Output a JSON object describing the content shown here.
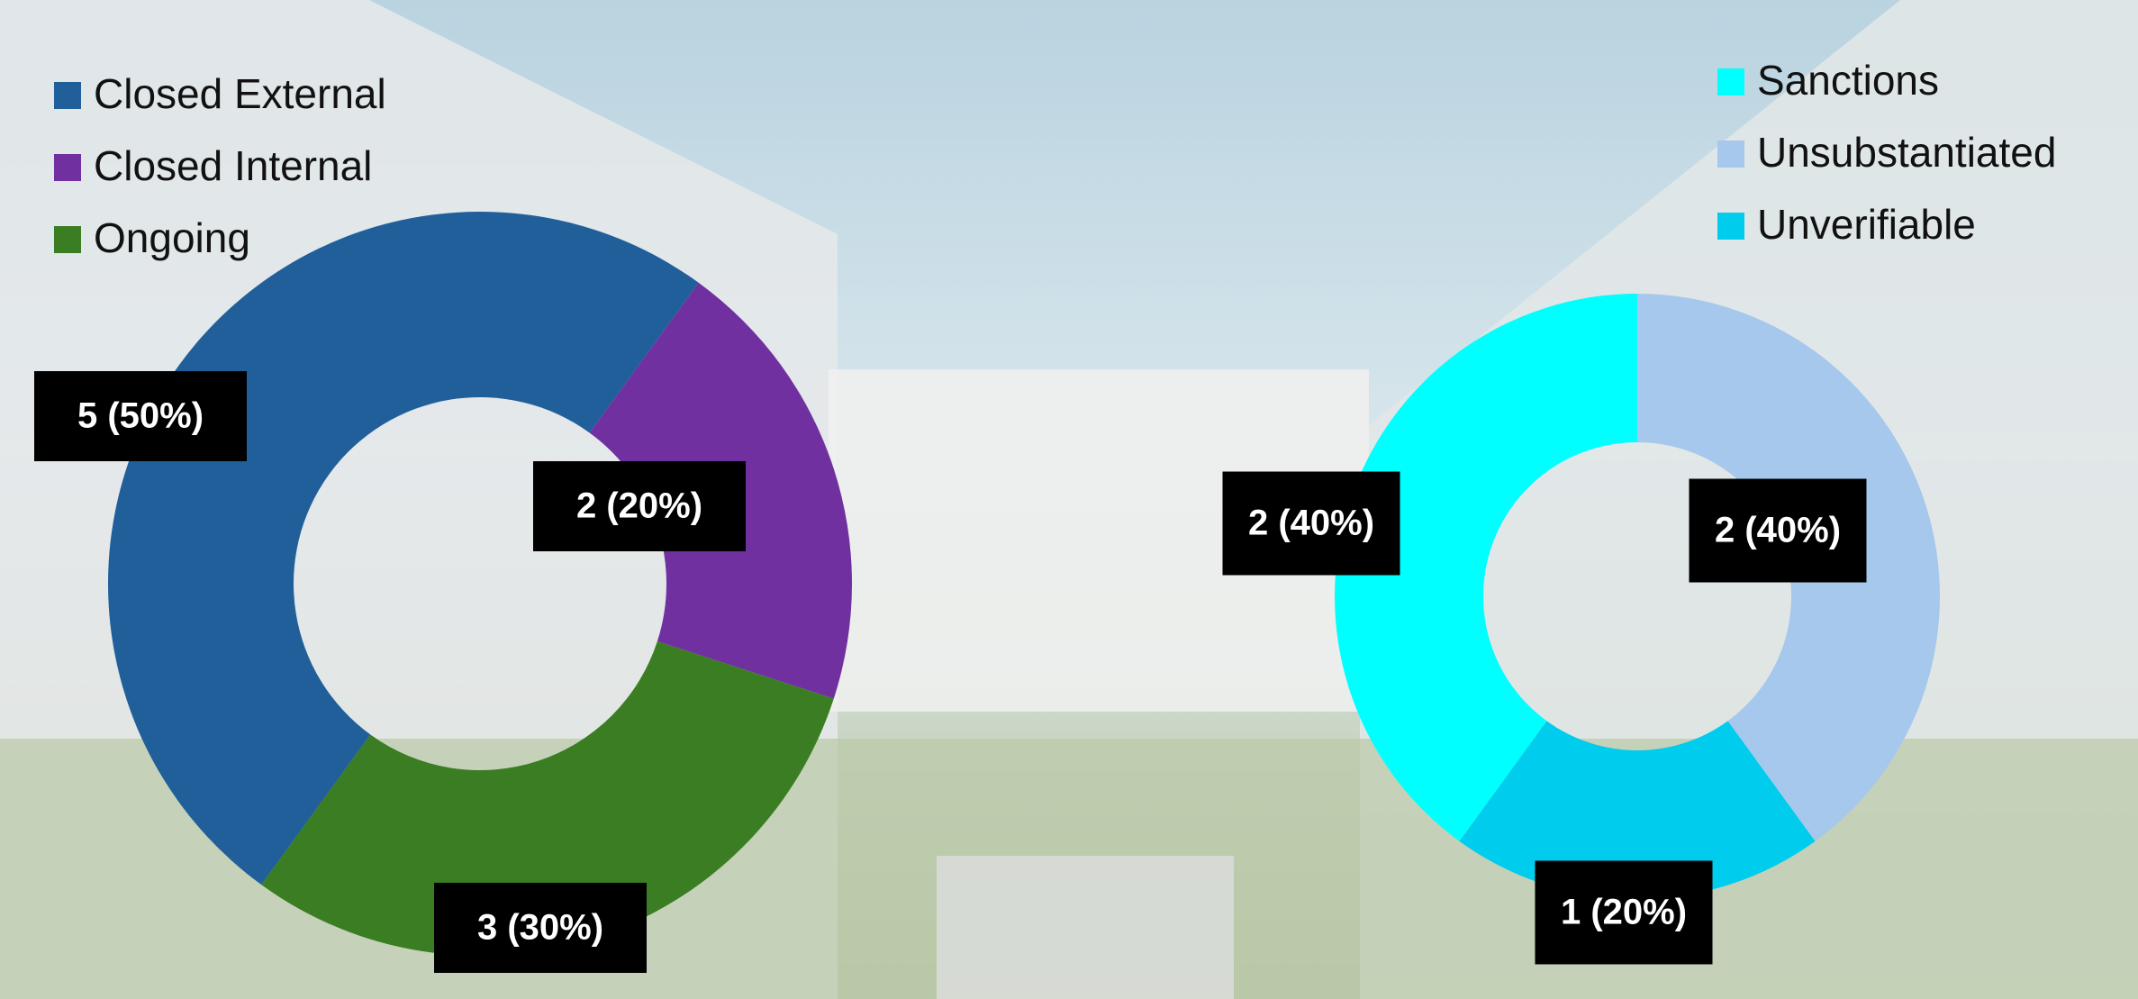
{
  "chart_data": [
    {
      "type": "donut",
      "categories": [
        "Closed External",
        "Closed Internal",
        "Ongoing"
      ],
      "values": [
        5,
        2,
        3
      ],
      "value_labels": [
        "5 (50%)",
        "2 (20%)",
        "3 (30%)"
      ],
      "colors": [
        "#215f9a",
        "#7030a0",
        "#3a7d22"
      ],
      "legend": "upper left"
    },
    {
      "type": "donut",
      "categories": [
        "Sanctions",
        "Unsubstantiated",
        "Unverifiable"
      ],
      "values": [
        2,
        2,
        1
      ],
      "value_labels": [
        "2 (40%)",
        "2 (40%)",
        "1 (20%)"
      ],
      "colors": [
        "#00ffff",
        "#a6c8ec",
        "#00cced"
      ],
      "legend": "upper right"
    }
  ]
}
